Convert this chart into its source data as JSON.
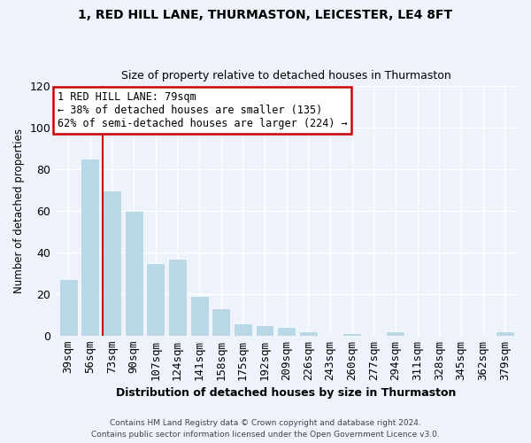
{
  "title1": "1, RED HILL LANE, THURMASTON, LEICESTER, LE4 8FT",
  "title2": "Size of property relative to detached houses in Thurmaston",
  "xlabel": "Distribution of detached houses by size in Thurmaston",
  "ylabel": "Number of detached properties",
  "footer1": "Contains HM Land Registry data © Crown copyright and database right 2024.",
  "footer2": "Contains public sector information licensed under the Open Government Licence v3.0.",
  "bar_labels": [
    "39sqm",
    "56sqm",
    "73sqm",
    "90sqm",
    "107sqm",
    "124sqm",
    "141sqm",
    "158sqm",
    "175sqm",
    "192sqm",
    "209sqm",
    "226sqm",
    "243sqm",
    "260sqm",
    "277sqm",
    "294sqm",
    "311sqm",
    "328sqm",
    "345sqm",
    "362sqm",
    "379sqm"
  ],
  "bar_values": [
    27,
    85,
    70,
    60,
    35,
    37,
    19,
    13,
    6,
    5,
    4,
    2,
    0,
    1,
    0,
    2,
    0,
    0,
    0,
    0,
    2
  ],
  "bar_color": "#b8d8e8",
  "bar_edge_color": "#b8d8e8",
  "vline_color": "#cc0000",
  "annotation_title": "1 RED HILL LANE: 79sqm",
  "annotation_line1": "← 38% of detached houses are smaller (135)",
  "annotation_line2": "62% of semi-detached houses are larger (224) →",
  "annotation_box_color": "#ffffff",
  "annotation_box_edge": "#cc0000",
  "ylim": [
    0,
    120
  ],
  "yticks": [
    0,
    20,
    40,
    60,
    80,
    100,
    120
  ],
  "bg_color": "#eef2fb",
  "grid_color": "#ffffff"
}
